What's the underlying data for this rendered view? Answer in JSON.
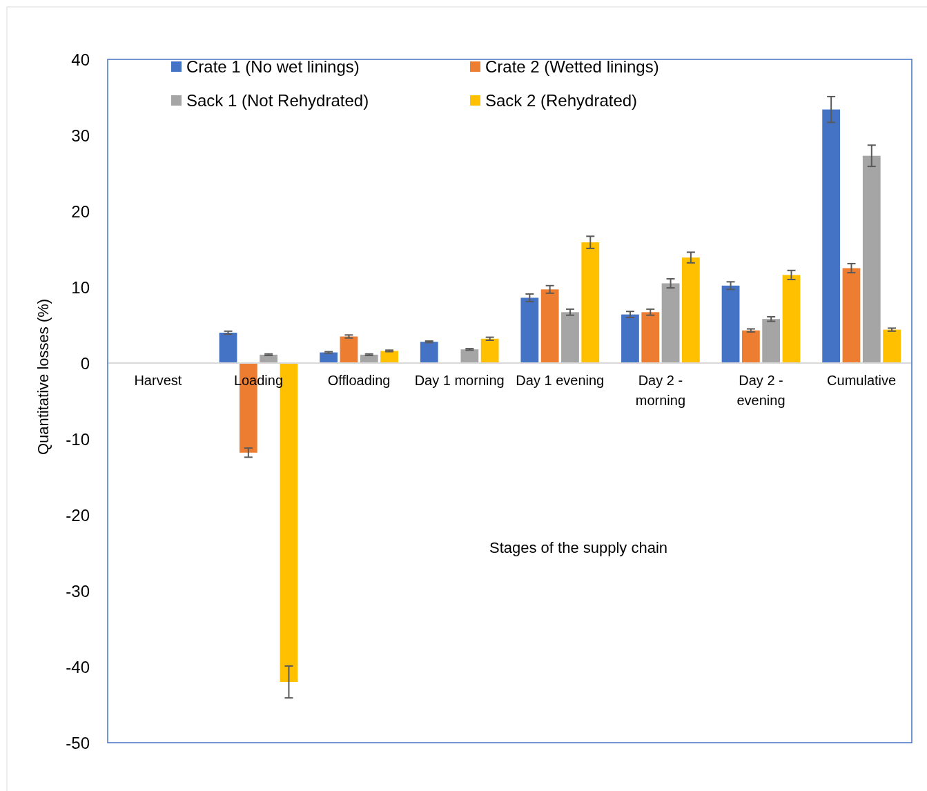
{
  "chart_data": {
    "type": "bar",
    "xlabel": "Stages of the supply chain",
    "ylabel": "Quantitative losses (%)",
    "categories": [
      "Harvest",
      "Loading",
      "Offloading",
      "Day 1 morning",
      "Day 1 evening",
      "Day 2 - morning",
      "Day 2 - evening",
      "Cumulative"
    ],
    "series": [
      {
        "name": "Crate 1 (No wet linings)",
        "color": "#4472c4",
        "values": [
          0,
          4.0,
          1.4,
          2.8,
          8.6,
          6.4,
          10.2,
          33.4
        ],
        "errors": [
          0,
          0.2,
          0.1,
          0.1,
          0.5,
          0.4,
          0.5,
          1.7
        ]
      },
      {
        "name": "Crate 2 (Wetted linings)",
        "color": "#ed7d31",
        "values": [
          0,
          -11.8,
          3.5,
          0,
          9.7,
          6.7,
          4.3,
          12.5
        ],
        "errors": [
          0,
          0.6,
          0.2,
          0,
          0.5,
          0.4,
          0.2,
          0.6
        ]
      },
      {
        "name": "Sack 1 (Not Rehydrated)",
        "color": "#a5a5a5",
        "values": [
          0,
          1.1,
          1.1,
          1.8,
          6.7,
          10.5,
          5.8,
          27.3
        ],
        "errors": [
          0,
          0.1,
          0.1,
          0.1,
          0.4,
          0.6,
          0.3,
          1.4
        ]
      },
      {
        "name": "Sack 2 (Rehydrated)",
        "color": "#ffc000",
        "values": [
          0,
          -42.0,
          1.6,
          3.2,
          15.9,
          13.9,
          11.6,
          4.4
        ],
        "errors": [
          0,
          2.1,
          0.1,
          0.2,
          0.8,
          0.7,
          0.6,
          0.2
        ]
      }
    ],
    "ylim": [
      -50,
      40
    ],
    "yticks": [
      -50,
      -40,
      -30,
      -20,
      -10,
      0,
      10,
      20,
      30,
      40
    ],
    "grid": false,
    "legend": "top"
  }
}
